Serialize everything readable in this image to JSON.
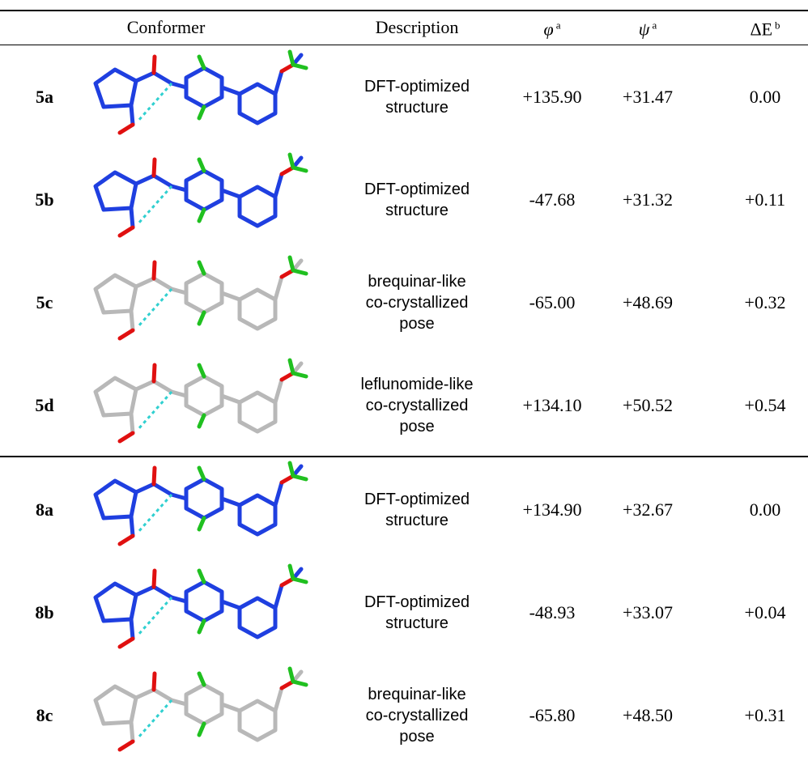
{
  "table": {
    "header": {
      "conformer": "Conformer",
      "description": "Description",
      "phi": {
        "symbol": "φ",
        "sup": "a"
      },
      "psi": {
        "symbol": "ψ",
        "sup": "a"
      },
      "dE": {
        "symbol": "ΔE",
        "sup": "b"
      }
    },
    "rows": [
      {
        "id": "5a",
        "description": [
          "DFT-optimized",
          "structure"
        ],
        "phi": "+135.90",
        "psi": "+31.47",
        "dE": "0.00"
      },
      {
        "id": "5b",
        "description": [
          "DFT-optimized",
          "structure"
        ],
        "phi": "-47.68",
        "psi": "+31.32",
        "dE": "+0.11"
      },
      {
        "id": "5c",
        "description": [
          "brequinar-like",
          "co-crystallized",
          "pose"
        ],
        "phi": "-65.00",
        "psi": "+48.69",
        "dE": "+0.32"
      },
      {
        "id": "5d",
        "description": [
          "leflunomide-like",
          "co-crystallized",
          "pose"
        ],
        "phi": "+134.10",
        "psi": "+50.52",
        "dE": "+0.54"
      },
      {
        "id": "8a",
        "description": [
          "DFT-optimized",
          "structure"
        ],
        "phi": "+134.90",
        "psi": "+32.67",
        "dE": "0.00"
      },
      {
        "id": "8b",
        "description": [
          "DFT-optimized",
          "structure"
        ],
        "phi": "-48.93",
        "psi": "+33.07",
        "dE": "+0.04"
      },
      {
        "id": "8c",
        "description": [
          "brequinar-like",
          "co-crystallized",
          "pose"
        ],
        "phi": "-65.80",
        "psi": "+48.50",
        "dE": "+0.31"
      }
    ]
  }
}
